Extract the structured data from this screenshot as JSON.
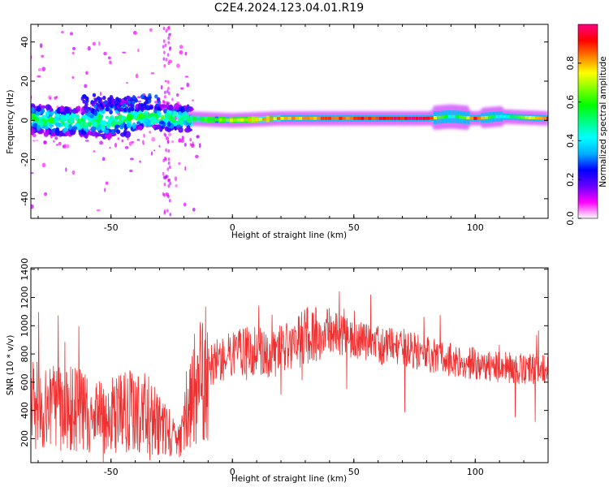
{
  "title": "C2E4.2024.123.04.01.R19",
  "chart_data": [
    {
      "type": "heatmap",
      "xlabel": "Height of straight line (km)",
      "ylabel": "Frequency (Hz)",
      "xlim": [
        -83,
        130
      ],
      "ylim": [
        -50,
        49
      ],
      "xticks": [
        -50,
        0,
        50,
        100
      ],
      "yticks": [
        -40,
        -20,
        0,
        20,
        40
      ],
      "colorbar": {
        "label": "Normalized spectral amplitude",
        "range": [
          0,
          1
        ],
        "ticks": [
          "0.0",
          "0.2",
          "0.4",
          "0.6",
          "0.8"
        ],
        "colors": [
          "#ffffff",
          "#ff00ff",
          "#6600ff",
          "#0000ff",
          "#00b0ff",
          "#00ffff",
          "#00ff80",
          "#00ff00",
          "#80ff00",
          "#ffff00",
          "#ff8000",
          "#ff0000",
          "#ff0080"
        ]
      },
      "ridge": [
        {
          "x": -80,
          "freq": 0,
          "amp": 0.45
        },
        {
          "x": -60,
          "freq": -1,
          "amp": 0.45
        },
        {
          "x": -40,
          "freq": 2,
          "amp": 0.5
        },
        {
          "x": -20,
          "freq": 1,
          "amp": 0.5
        },
        {
          "x": 0,
          "freq": 0,
          "amp": 0.7
        },
        {
          "x": 20,
          "freq": 1,
          "amp": 0.8
        },
        {
          "x": 40,
          "freq": 1,
          "amp": 0.85
        },
        {
          "x": 60,
          "freq": 1,
          "amp": 0.9
        },
        {
          "x": 80,
          "freq": 1,
          "amp": 0.95
        },
        {
          "x": 90,
          "freq": 2,
          "amp": 0.4
        },
        {
          "x": 100,
          "freq": 1,
          "amp": 0.9
        },
        {
          "x": 110,
          "freq": 2,
          "amp": 0.4
        },
        {
          "x": 130,
          "freq": 1,
          "amp": 0.9
        }
      ]
    },
    {
      "type": "line",
      "xlabel": "Height of straight line (km)",
      "ylabel": "SNR (10 * v/v)",
      "xlim": [
        -83,
        130
      ],
      "ylim": [
        30,
        1410
      ],
      "xticks": [
        -50,
        0,
        50,
        100
      ],
      "yticks": [
        200,
        400,
        600,
        800,
        1000,
        1200,
        1400
      ],
      "color": "#f03030",
      "series": [
        {
          "x": [
            -83,
            -75,
            -70,
            -65,
            -60,
            -55,
            -50,
            -45,
            -40,
            -35,
            -30,
            -25,
            -22,
            -20,
            -18,
            -15,
            -12,
            -10,
            -5,
            0,
            5,
            10,
            15,
            20,
            25,
            30,
            35,
            40,
            45,
            50,
            55,
            60,
            65,
            70,
            75,
            80,
            85,
            90,
            95,
            100,
            105,
            110,
            115,
            120,
            125,
            130
          ],
          "values": [
            430,
            420,
            400,
            410,
            380,
            360,
            370,
            390,
            400,
            380,
            300,
            220,
            170,
            300,
            480,
            560,
            620,
            700,
            760,
            790,
            820,
            820,
            800,
            830,
            850,
            930,
            960,
            950,
            930,
            910,
            880,
            860,
            850,
            830,
            820,
            800,
            780,
            760,
            750,
            730,
            720,
            710,
            700,
            690,
            690,
            680
          ]
        }
      ]
    }
  ]
}
